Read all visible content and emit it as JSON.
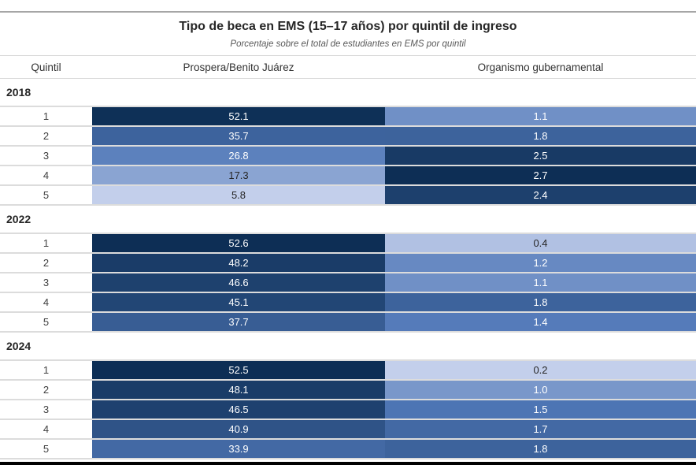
{
  "chart_data": {
    "type": "heatmap",
    "title": "Tipo de beca en EMS (15–17 años) por quintil de ingreso",
    "subtitle": "Porcentaje sobre el total de estudiantes en EMS por quintil",
    "row_label_header": "Quintil",
    "columns": [
      "Prospera/Benito Juárez",
      "Organismo gubernamental"
    ],
    "quintiles": [
      "1",
      "2",
      "3",
      "4",
      "5"
    ],
    "groups": [
      {
        "year": "2018",
        "prospera": [
          52.1,
          35.7,
          26.8,
          17.3,
          5.8
        ],
        "organismo": [
          1.1,
          1.8,
          2.5,
          2.7,
          2.4
        ]
      },
      {
        "year": "2022",
        "prospera": [
          52.6,
          48.2,
          46.6,
          45.1,
          37.7
        ],
        "organismo": [
          0.4,
          1.2,
          1.1,
          1.8,
          1.4
        ]
      },
      {
        "year": "2024",
        "prospera": [
          52.5,
          48.1,
          46.5,
          40.9,
          33.9
        ],
        "organismo": [
          0.2,
          1.0,
          1.5,
          1.7,
          1.8
        ]
      }
    ],
    "layout": {
      "legend": "none",
      "grid": "row-separators",
      "value_format": "one-decimal"
    },
    "color_scale": {
      "stops": [
        "#c3cfeb",
        "#5078b8",
        "#0d2e55"
      ],
      "prospera_domain": [
        5.8,
        52.6
      ],
      "organismo_domain": [
        0.2,
        2.7
      ]
    },
    "value_text_colors": {
      "light": "#ffffff",
      "dark": "#262626",
      "white_text_threshold": 0.3
    }
  }
}
